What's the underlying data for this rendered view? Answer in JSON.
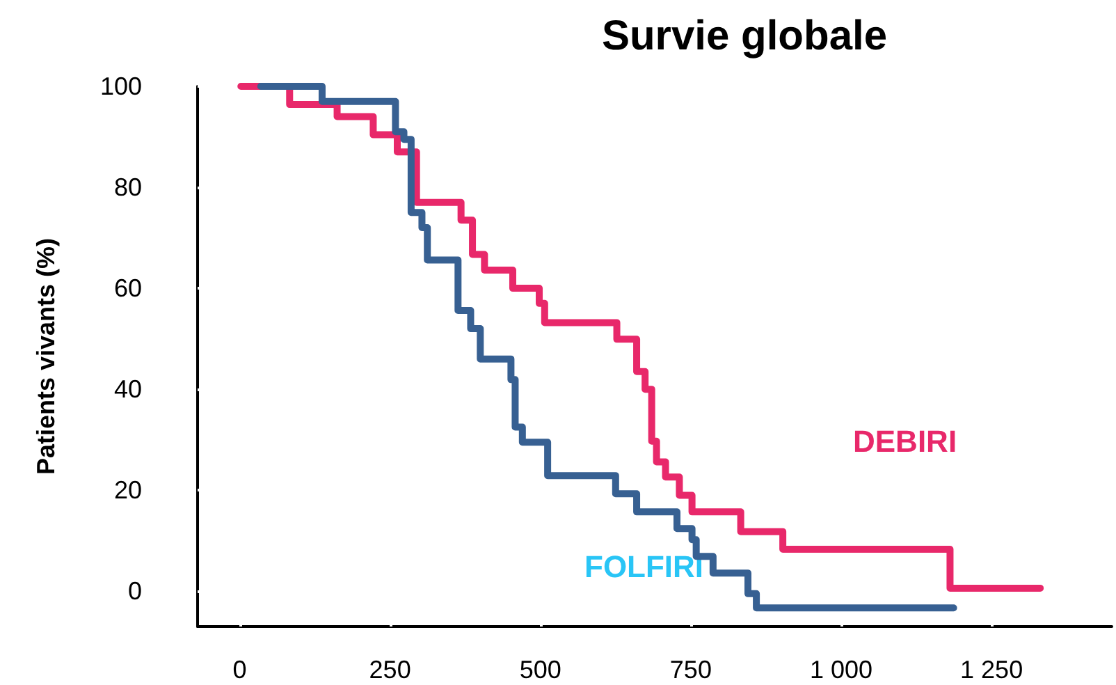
{
  "chart_data": {
    "type": "step",
    "title": "Survie globale",
    "ylabel": "Patients vivants (%)",
    "xlim": [
      -70,
      1450
    ],
    "ylim": [
      -7,
      100
    ],
    "xticks": [
      0,
      250,
      500,
      750,
      {
        "value": 1000,
        "label": "1 000"
      },
      {
        "value": 1250,
        "label": "1 250"
      }
    ],
    "yticks": [
      0,
      20,
      40,
      60,
      80,
      100
    ],
    "grid": false,
    "legend": false,
    "marker": "none",
    "line_style": "solid",
    "series": [
      {
        "name": "DEBIRI",
        "color": "#e8286a",
        "x": [
          2,
          83,
          162,
          222,
          262,
          294,
          368,
          387,
          407,
          454,
          498,
          507,
          627,
          660,
          674,
          685,
          693,
          708,
          731,
          752,
          833,
          903,
          1181,
          1331
        ],
        "values": [
          100,
          96.4,
          94,
          90.4,
          87,
          77,
          73.5,
          66.7,
          63.6,
          60,
          57,
          53.2,
          49.9,
          43.5,
          40,
          29.7,
          25.6,
          22.6,
          19,
          15.7,
          11.8,
          8.3,
          0.6,
          0.6
        ]
      },
      {
        "name": "FOLFIRI",
        "color": "#376092",
        "x": [
          35,
          137,
          259,
          273,
          285,
          303,
          312,
          363,
          384,
          400,
          451,
          458,
          470,
          512,
          625,
          660,
          727,
          752,
          759,
          787,
          845,
          859,
          1187
        ],
        "values": [
          100,
          97,
          91,
          89.5,
          75,
          72,
          65.6,
          55.6,
          52,
          46,
          41.9,
          32.5,
          29.5,
          22.9,
          19.3,
          15.7,
          12.4,
          10.2,
          6.9,
          3.6,
          -0.5,
          -3.3,
          -3.3
        ]
      }
    ]
  }
}
